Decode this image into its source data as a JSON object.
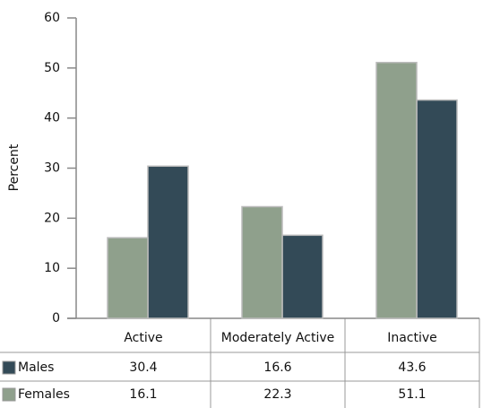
{
  "chart_data": {
    "type": "bar",
    "y_label": "Percent",
    "categories": [
      "Active",
      "Moderately Active",
      "Inactive"
    ],
    "series": [
      {
        "name": "Males",
        "color": "#334a57",
        "values": [
          30.4,
          16.6,
          43.6
        ]
      },
      {
        "name": "Females",
        "color": "#8fa08c",
        "values": [
          16.1,
          22.3,
          51.1
        ]
      }
    ],
    "ylim": [
      0,
      60
    ],
    "yticks": [
      0,
      10,
      20,
      30,
      40,
      50,
      60
    ]
  }
}
